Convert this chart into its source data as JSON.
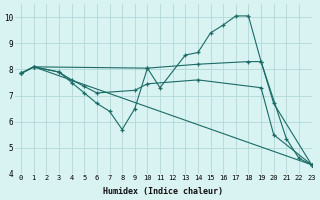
{
  "xlabel": "Humidex (Indice chaleur)",
  "bg_color": "#d9f2f2",
  "grid_color": "#b0d8d8",
  "line_color": "#1a6b65",
  "xlim": [
    -0.5,
    23
  ],
  "ylim": [
    4,
    10.5
  ],
  "yticks": [
    4,
    5,
    6,
    7,
    8,
    9,
    10
  ],
  "xticks": [
    0,
    1,
    2,
    3,
    4,
    5,
    6,
    7,
    8,
    9,
    10,
    11,
    12,
    13,
    14,
    15,
    16,
    17,
    18,
    19,
    20,
    21,
    22,
    23
  ],
  "lines": [
    {
      "x": [
        0,
        1,
        3,
        4,
        5,
        6,
        7,
        8,
        9,
        10,
        11,
        13,
        14,
        15,
        16,
        17,
        18,
        19,
        21,
        22,
        23
      ],
      "y": [
        7.85,
        8.1,
        7.9,
        7.5,
        7.1,
        6.7,
        6.4,
        5.7,
        6.5,
        8.05,
        7.3,
        8.55,
        8.65,
        9.4,
        9.7,
        10.05,
        10.05,
        8.3,
        5.35,
        4.6,
        4.35
      ]
    },
    {
      "x": [
        0,
        1,
        10,
        14,
        18,
        19,
        20,
        23
      ],
      "y": [
        7.85,
        8.1,
        8.05,
        8.2,
        8.3,
        8.3,
        6.7,
        4.35
      ]
    },
    {
      "x": [
        0,
        1,
        3,
        4,
        5,
        6,
        9,
        10,
        14,
        19,
        20,
        23
      ],
      "y": [
        7.85,
        8.1,
        7.9,
        7.6,
        7.35,
        7.1,
        7.2,
        7.45,
        7.6,
        7.3,
        5.5,
        4.35
      ]
    },
    {
      "x": [
        0,
        1,
        23
      ],
      "y": [
        7.85,
        8.1,
        4.35
      ]
    }
  ]
}
